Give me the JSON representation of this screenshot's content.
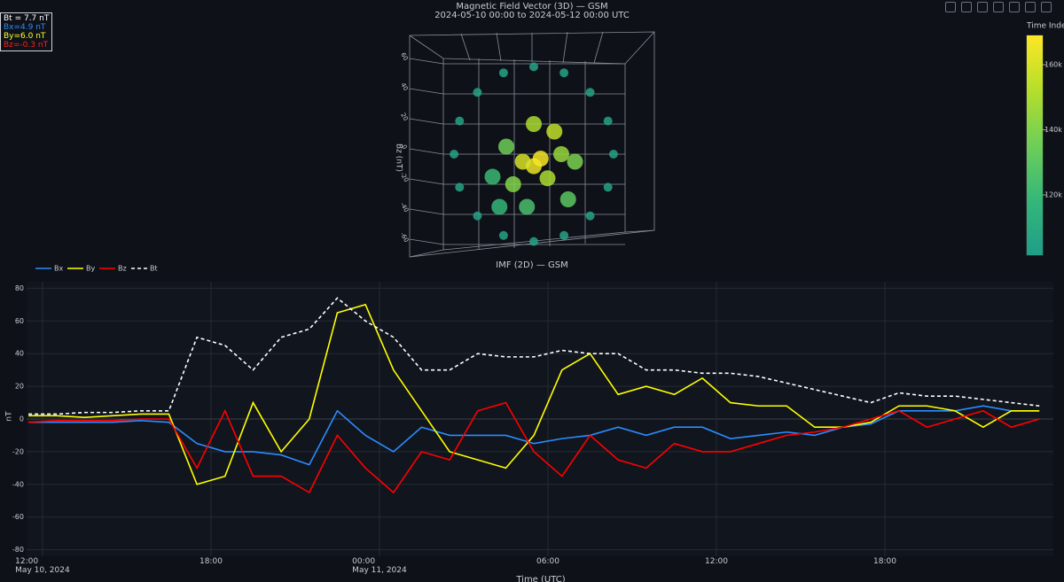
{
  "readout": [
    {
      "text": "Bt = 7.7 nT",
      "color": "#ffffff"
    },
    {
      "text": "Bx=4.9 nT",
      "color": "#2b8cff"
    },
    {
      "text": "By=6.0 nT",
      "color": "#ffff33"
    },
    {
      "text": "Bz=-0.3 nT",
      "color": "#ff2020"
    }
  ],
  "chart_data": [
    {
      "type": "scatter3d",
      "title": "Magnetic Field Vector (3D) — GSM",
      "subtitle": "2024-05-10 00:00 to 2024-05-12 00:00 UTC",
      "zlabel": "Bz (nT)",
      "zlim": [
        -70,
        70
      ],
      "ylim": [
        -70,
        70
      ],
      "zticks": [
        -60,
        -40,
        -20,
        0,
        20,
        40,
        60
      ],
      "points": {
        "y": [
          58,
          54,
          41,
          22,
          0,
          -22,
          -41,
          -54,
          -58,
          -54,
          -41,
          -22,
          0,
          22,
          41,
          54,
          0,
          5,
          -8,
          10,
          -15,
          20,
          -20,
          15,
          -5,
          25,
          -30,
          30,
          0,
          -25
        ],
        "z": [
          0,
          22,
          41,
          54,
          58,
          54,
          41,
          22,
          0,
          -22,
          -41,
          -54,
          -58,
          -54,
          -41,
          -22,
          -8,
          -3,
          -5,
          -16,
          -20,
          0,
          5,
          15,
          -35,
          -30,
          -15,
          -5,
          20,
          -35
        ],
        "c": [
          105000,
          105000,
          105000,
          105000,
          105000,
          105000,
          105000,
          105000,
          105000,
          105000,
          105000,
          105000,
          105000,
          105000,
          105000,
          105000,
          165000,
          168000,
          160000,
          150000,
          140000,
          145000,
          135000,
          155000,
          125000,
          130000,
          120000,
          138000,
          150000,
          118000
        ]
      },
      "colorbar": {
        "title": "Time Index",
        "lim": [
          101500,
          169000
        ],
        "colors": [
          "#1f9e89",
          "#35b779",
          "#6ece58",
          "#b5de2b",
          "#fde725"
        ],
        "ticks": [
          {
            "value": 120000,
            "label": "120k"
          },
          {
            "value": 140000,
            "label": "140k"
          },
          {
            "value": 160000,
            "label": "160k"
          }
        ]
      }
    },
    {
      "type": "line",
      "title": "IMF (2D) — GSM",
      "xlabel": "Time (UTC)",
      "ylabel": "nT",
      "grid": true,
      "xlim": [
        "2024-05-10T11:26",
        "2024-05-12T00:00"
      ],
      "ylim": [
        -84,
        84
      ],
      "yticks": [
        -80,
        -60,
        -40,
        -20,
        0,
        20,
        40,
        60,
        80
      ],
      "xticks": [
        {
          "value": "2024-05-10T12:00",
          "label": "12:00\nMay 10, 2024"
        },
        {
          "value": "2024-05-10T18:00",
          "label": "18:00"
        },
        {
          "value": "2024-05-11T00:00",
          "label": "00:00\nMay 11, 2024"
        },
        {
          "value": "2024-05-11T06:00",
          "label": "06:00"
        },
        {
          "value": "2024-05-11T12:00",
          "label": "12:00"
        },
        {
          "value": "2024-05-11T18:00",
          "label": "18:00"
        }
      ],
      "x": [
        "2024-05-10T11:30",
        "2024-05-10T12:30",
        "2024-05-10T13:30",
        "2024-05-10T14:30",
        "2024-05-10T15:30",
        "2024-05-10T16:30",
        "2024-05-10T17:30",
        "2024-05-10T18:30",
        "2024-05-10T19:30",
        "2024-05-10T20:30",
        "2024-05-10T21:30",
        "2024-05-10T22:30",
        "2024-05-10T23:30",
        "2024-05-11T00:30",
        "2024-05-11T01:30",
        "2024-05-11T02:30",
        "2024-05-11T03:30",
        "2024-05-11T04:30",
        "2024-05-11T05:30",
        "2024-05-11T06:30",
        "2024-05-11T07:30",
        "2024-05-11T08:30",
        "2024-05-11T09:30",
        "2024-05-11T10:30",
        "2024-05-11T11:30",
        "2024-05-11T12:30",
        "2024-05-11T13:30",
        "2024-05-11T14:30",
        "2024-05-11T15:30",
        "2024-05-11T16:30",
        "2024-05-11T17:30",
        "2024-05-11T18:30",
        "2024-05-11T19:30",
        "2024-05-11T20:30",
        "2024-05-11T21:30",
        "2024-05-11T22:30",
        "2024-05-11T23:30"
      ],
      "series": [
        {
          "name": "Bx",
          "color": "#2b8cff",
          "dash": "solid",
          "values": [
            -2,
            -2,
            -2,
            -2,
            -1,
            -2,
            -15,
            -20,
            -20,
            -22,
            -28,
            5,
            -10,
            -20,
            -5,
            -10,
            -10,
            -10,
            -15,
            -12,
            -10,
            -5,
            -10,
            -5,
            -5,
            -12,
            -10,
            -8,
            -10,
            -5,
            -3,
            5,
            5,
            5,
            8,
            5,
            5
          ]
        },
        {
          "name": "By",
          "color": "#ffff00",
          "dash": "solid",
          "values": [
            2,
            2,
            1,
            2,
            3,
            3,
            -40,
            -35,
            10,
            -20,
            0,
            65,
            70,
            30,
            5,
            -20,
            -25,
            -30,
            -10,
            30,
            40,
            15,
            20,
            15,
            25,
            10,
            8,
            8,
            -5,
            -5,
            -2,
            8,
            8,
            5,
            -5,
            5,
            5
          ]
        },
        {
          "name": "Bz",
          "color": "#ff0000",
          "dash": "solid",
          "values": [
            -2,
            -1,
            -1,
            -1,
            0,
            0,
            -30,
            5,
            -35,
            -35,
            -45,
            -10,
            -30,
            -45,
            -20,
            -25,
            5,
            10,
            -20,
            -35,
            -10,
            -25,
            -30,
            -15,
            -20,
            -20,
            -15,
            -10,
            -8,
            -5,
            0,
            5,
            -5,
            0,
            5,
            -5,
            0
          ]
        },
        {
          "name": "Bt",
          "color": "#ffffff",
          "dash": "dash",
          "values": [
            3,
            3,
            4,
            4,
            5,
            5,
            50,
            45,
            30,
            50,
            55,
            74,
            60,
            50,
            30,
            30,
            40,
            38,
            38,
            42,
            40,
            40,
            30,
            30,
            28,
            28,
            26,
            22,
            18,
            14,
            10,
            16,
            14,
            14,
            12,
            10,
            8
          ]
        }
      ]
    }
  ]
}
